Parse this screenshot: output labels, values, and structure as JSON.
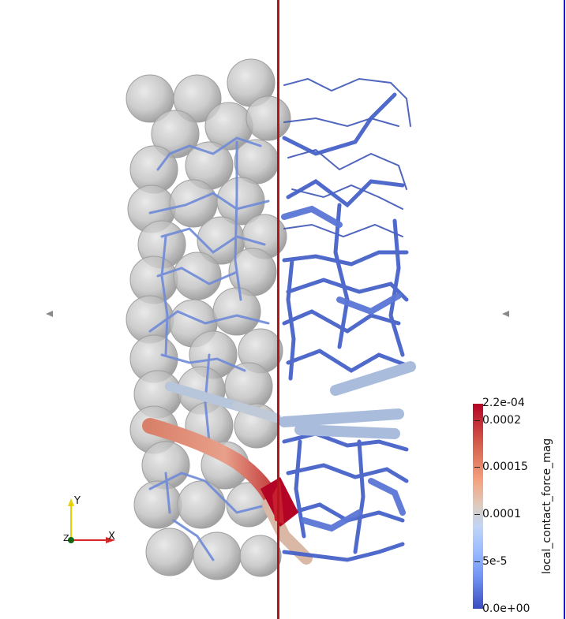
{
  "colorbar": {
    "title": "local_contact_force_mag",
    "labels": {
      "max": "2.2e-04",
      "t1": "0.0002",
      "t2": "0.00015",
      "t3": "0.0001",
      "t4": "5e-5",
      "min": "0.0e+00"
    },
    "colors": {
      "high": "#b40426",
      "mid": "#dddcdc",
      "low": "#3b4cc0"
    }
  },
  "axes": {
    "x_label": "X",
    "y_label": "Y",
    "z_label": "Z",
    "colors": {
      "x": "#d62728",
      "y": "#e6d200",
      "z": "#116611"
    }
  },
  "split_line_color": "#b0161c",
  "frame_color": "#1a1ad0"
}
